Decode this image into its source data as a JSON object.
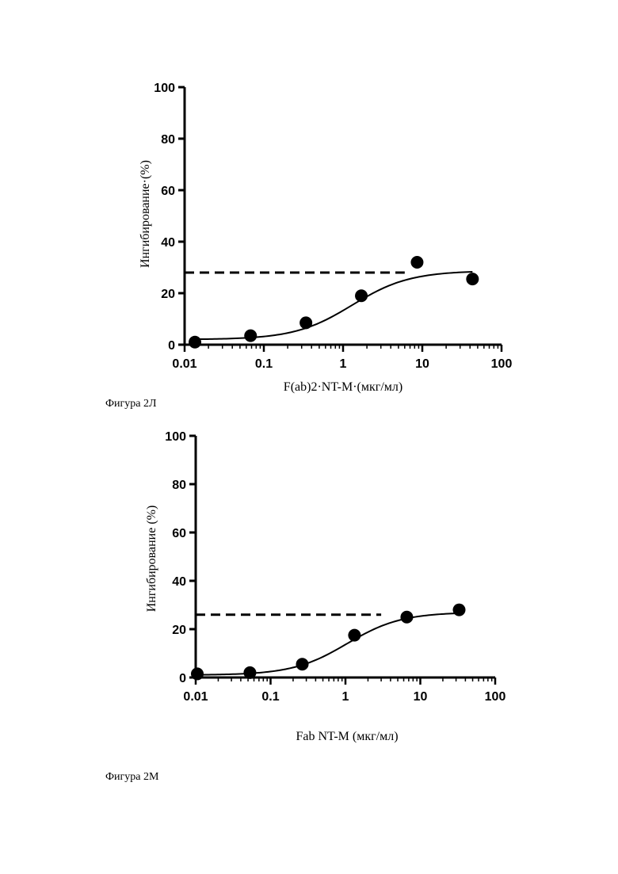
{
  "figures": [
    {
      "caption": "Фигура 2Л",
      "chart_data": {
        "type": "scatter",
        "x_scale": "log",
        "xlim": [
          0.01,
          100
        ],
        "ylim": [
          0,
          100
        ],
        "xlabel": "F(ab)2·NT-M·(мкг/мл)",
        "ylabel": "Ингибирование·(%)",
        "x_tick_labels": [
          "0.01",
          "0.1",
          "1",
          "10",
          "100"
        ],
        "y_tick_labels": [
          "0",
          "20",
          "40",
          "60",
          "80",
          "100"
        ],
        "grid": false,
        "series": [
          {
            "kind": "points",
            "x": [
              0.0135,
              0.068,
              0.34,
              1.7,
              8.6,
              43
            ],
            "y": [
              1,
              3.5,
              8.5,
              19,
              32,
              25.5
            ]
          },
          {
            "kind": "fit-curve",
            "bottom": 2,
            "top": 28.7,
            "ec50": 1.3,
            "hill": 1.2,
            "x_range": [
              0.013,
              43
            ]
          },
          {
            "kind": "dashed-line",
            "y": 28,
            "x_range": [
              0.01,
              6
            ]
          }
        ]
      }
    },
    {
      "caption": "Фигура 2М",
      "chart_data": {
        "type": "scatter",
        "x_scale": "log",
        "xlim": [
          0.01,
          100
        ],
        "ylim": [
          0,
          100
        ],
        "xlabel": "Fab NT-M (мкг/мл)",
        "ylabel": "Ингибирование (%)",
        "x_tick_labels": [
          "0.01",
          "0.1",
          "1",
          "10",
          "100"
        ],
        "y_tick_labels": [
          "0",
          "20",
          "40",
          "60",
          "80",
          "100"
        ],
        "grid": false,
        "series": [
          {
            "kind": "points",
            "x": [
              0.0105,
              0.053,
              0.265,
              1.32,
              6.6,
              33
            ],
            "y": [
              1.5,
              2,
              5.5,
              17.5,
              25,
              28
            ]
          },
          {
            "kind": "fit-curve",
            "bottom": 1,
            "top": 27,
            "ec50": 1.05,
            "hill": 1.2,
            "x_range": [
              0.01,
              33
            ]
          },
          {
            "kind": "dashed-line",
            "y": 26,
            "x_range": [
              0.01,
              3
            ]
          }
        ]
      }
    }
  ]
}
